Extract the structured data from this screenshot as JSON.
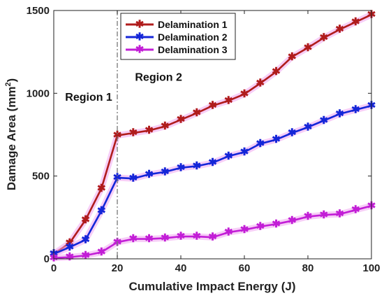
{
  "chart_data": {
    "type": "line",
    "xlabel": "Cumulative Impact Energy (J)",
    "ylabel": "Damage Area (mm",
    "ylabel_sup": "2",
    "ylabel_close": ")",
    "xlim": [
      0,
      100
    ],
    "ylim": [
      0,
      1500
    ],
    "xticks": [
      0,
      20,
      40,
      60,
      80,
      100
    ],
    "yticks": [
      0,
      500,
      1000,
      1500
    ],
    "grid": false,
    "legend_position": "top-left",
    "x": [
      0,
      5,
      10,
      15,
      20,
      25,
      30,
      35,
      40,
      45,
      50,
      55,
      60,
      65,
      70,
      75,
      80,
      85,
      90,
      95,
      100
    ],
    "series": [
      {
        "name": "Delamination 1",
        "color": "#b01c1c",
        "values": [
          30,
          95,
          235,
          425,
          745,
          760,
          775,
          800,
          840,
          880,
          925,
          955,
          995,
          1060,
          1130,
          1220,
          1275,
          1335,
          1385,
          1430,
          1475
        ]
      },
      {
        "name": "Delamination 2",
        "color": "#1426d8",
        "values": [
          30,
          70,
          115,
          290,
          490,
          485,
          510,
          525,
          550,
          560,
          580,
          620,
          645,
          695,
          720,
          760,
          795,
          835,
          875,
          900,
          925
        ]
      },
      {
        "name": "Delamination 3",
        "color": "#c21ed6",
        "values": [
          5,
          10,
          20,
          40,
          100,
          120,
          120,
          125,
          135,
          135,
          130,
          160,
          175,
          195,
          210,
          230,
          255,
          265,
          270,
          295,
          320
        ]
      }
    ],
    "annotations": [
      {
        "text": "Region 1",
        "x": 11,
        "y": 955
      },
      {
        "text": "Region 2",
        "x": 33,
        "y": 1075
      }
    ],
    "divider_x": 20
  }
}
